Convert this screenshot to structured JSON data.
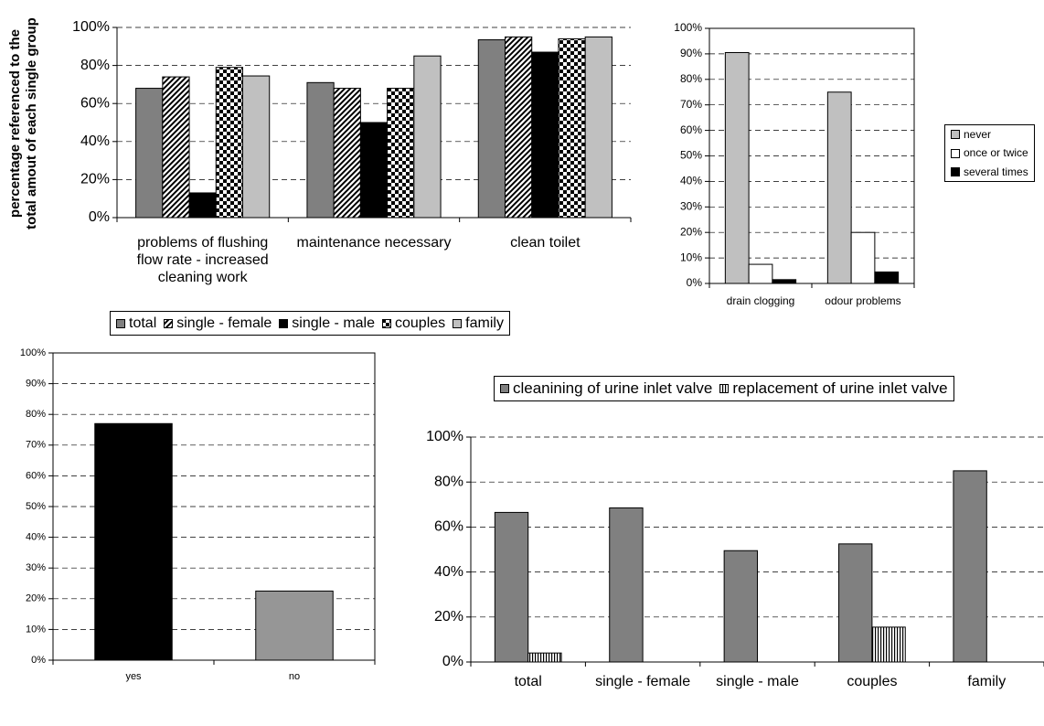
{
  "chart_data": [
    {
      "type": "bar",
      "y_label": "percentage referenced to the total amout of each single group",
      "categories": [
        "problems of flushing flow rate - increased cleaning work",
        "maintenance necessary",
        "clean toilet"
      ],
      "series": [
        {
          "name": "total",
          "color": "#808080",
          "values": [
            68,
            71,
            93.5
          ]
        },
        {
          "name": "single - female",
          "color": "#000000",
          "pattern": "diagonal",
          "values": [
            74,
            68,
            95
          ]
        },
        {
          "name": "single - male",
          "color": "#000000",
          "values": [
            13,
            50,
            87
          ]
        },
        {
          "name": "couples",
          "color": "#000000",
          "pattern": "checker",
          "values": [
            79,
            68,
            94
          ]
        },
        {
          "name": "family",
          "color": "#c0c0c0",
          "values": [
            74.5,
            85,
            95
          ]
        }
      ],
      "ylim": [
        0,
        100
      ],
      "yticks": [
        {
          "value": 0,
          "label": "0%"
        },
        {
          "value": 20,
          "label": "20%"
        },
        {
          "value": 40,
          "label": "40%"
        },
        {
          "value": 60,
          "label": "60%"
        },
        {
          "value": 80,
          "label": "80%"
        },
        {
          "value": 100,
          "label": "100%"
        }
      ],
      "grid": true,
      "legend": "bottom"
    },
    {
      "type": "bar",
      "categories": [
        "drain clogging",
        "odour problems"
      ],
      "series": [
        {
          "name": "never",
          "color": "#c0c0c0",
          "values": [
            90.5,
            75
          ]
        },
        {
          "name": "once or twice",
          "color": "#ffffff",
          "values": [
            7.5,
            20
          ]
        },
        {
          "name": "several times",
          "color": "#000000",
          "values": [
            1.5,
            4.5
          ]
        }
      ],
      "ylim": [
        0,
        100
      ],
      "yticks": [
        {
          "value": 0,
          "label": "0%"
        },
        {
          "value": 10,
          "label": "10%"
        },
        {
          "value": 20,
          "label": "20%"
        },
        {
          "value": 30,
          "label": "30%"
        },
        {
          "value": 40,
          "label": "40%"
        },
        {
          "value": 50,
          "label": "50%"
        },
        {
          "value": 60,
          "label": "60%"
        },
        {
          "value": 70,
          "label": "70%"
        },
        {
          "value": 80,
          "label": "80%"
        },
        {
          "value": 90,
          "label": "90%"
        },
        {
          "value": 100,
          "label": "100%"
        }
      ],
      "grid": true,
      "legend": "right"
    },
    {
      "type": "bar",
      "categories": [
        "yes",
        "no"
      ],
      "series": [
        {
          "colors": [
            "#000000",
            "#969696"
          ],
          "values": [
            77,
            22.5
          ]
        }
      ],
      "ylim": [
        0,
        100
      ],
      "yticks": [
        {
          "value": 0,
          "label": "0%"
        },
        {
          "value": 10,
          "label": "10%"
        },
        {
          "value": 20,
          "label": "20%"
        },
        {
          "value": 30,
          "label": "30%"
        },
        {
          "value": 40,
          "label": "40%"
        },
        {
          "value": 50,
          "label": "50%"
        },
        {
          "value": 60,
          "label": "60%"
        },
        {
          "value": 70,
          "label": "70%"
        },
        {
          "value": 80,
          "label": "80%"
        },
        {
          "value": 90,
          "label": "90%"
        },
        {
          "value": 100,
          "label": "100%"
        }
      ],
      "grid": true
    },
    {
      "type": "bar",
      "categories": [
        "total",
        "single - female",
        "single - male",
        "couples",
        "family"
      ],
      "series": [
        {
          "name": "cleanining of urine inlet valve",
          "color": "#808080",
          "values": [
            66.5,
            68.5,
            49.5,
            52.5,
            85
          ]
        },
        {
          "name": "replacement of urine inlet valve",
          "color": "#000000",
          "pattern": "vstripe",
          "values": [
            4,
            0,
            0,
            15.5,
            0
          ]
        }
      ],
      "ylim": [
        0,
        100
      ],
      "yticks": [
        {
          "value": 0,
          "label": "0%"
        },
        {
          "value": 20,
          "label": "20%"
        },
        {
          "value": 40,
          "label": "40%"
        },
        {
          "value": 60,
          "label": "60%"
        },
        {
          "value": 80,
          "label": "80%"
        },
        {
          "value": 100,
          "label": "100%"
        }
      ],
      "grid": true,
      "legend": "top"
    }
  ]
}
